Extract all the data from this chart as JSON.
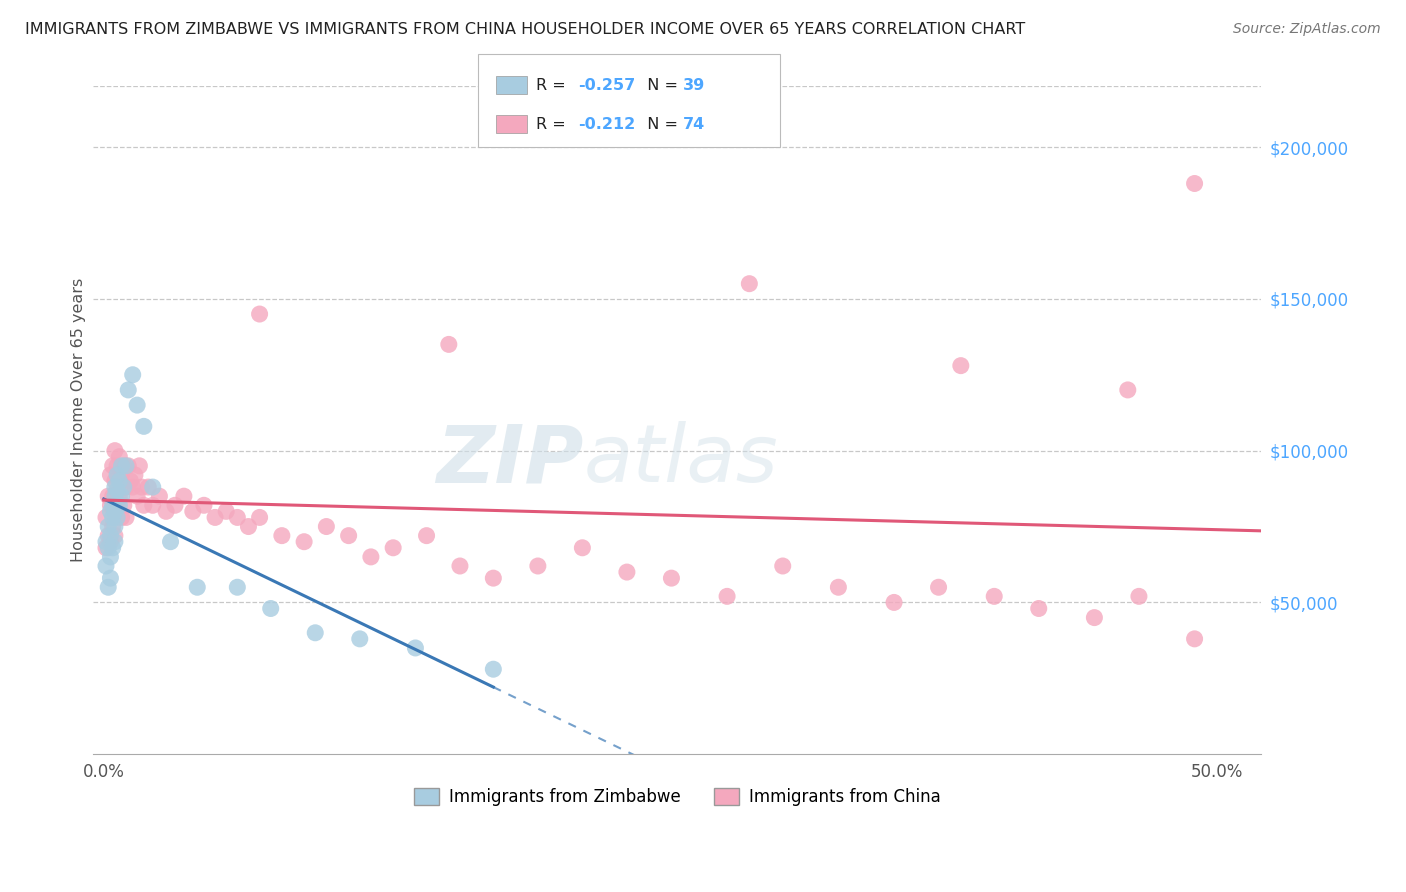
{
  "title": "IMMIGRANTS FROM ZIMBABWE VS IMMIGRANTS FROM CHINA HOUSEHOLDER INCOME OVER 65 YEARS CORRELATION CHART",
  "source": "Source: ZipAtlas.com",
  "ylabel": "Householder Income Over 65 years",
  "ytick_labels": [
    "$50,000",
    "$100,000",
    "$150,000",
    "$200,000"
  ],
  "ytick_vals": [
    50000,
    100000,
    150000,
    200000
  ],
  "ylim": [
    0,
    220000
  ],
  "xlim": [
    -0.005,
    0.52
  ],
  "xtick_vals": [
    0.0,
    0.5
  ],
  "xtick_labels": [
    "0.0%",
    "50.0%"
  ],
  "legend_R1": "R = -0.257",
  "legend_N1": "N = 39",
  "legend_R2": "R = -0.212",
  "legend_N2": "N = 74",
  "color_zimbabwe": "#a8cce0",
  "color_china": "#f4a8be",
  "trendline_color_zimbabwe": "#3a78b5",
  "trendline_color_china": "#e05878",
  "watermark_zip": "ZIP",
  "watermark_atlas": "atlas",
  "background_color": "#ffffff",
  "grid_color": "#c8c8c8",
  "title_color": "#222222",
  "ytick_color": "#4da6ff",
  "legend_text_color": "#222222",
  "legend_val_color": "#4da6ff",
  "source_color": "#777777",
  "zimbabwe_x": [
    0.001,
    0.001,
    0.002,
    0.002,
    0.002,
    0.003,
    0.003,
    0.003,
    0.003,
    0.004,
    0.004,
    0.004,
    0.005,
    0.005,
    0.005,
    0.005,
    0.005,
    0.006,
    0.006,
    0.006,
    0.007,
    0.007,
    0.008,
    0.008,
    0.009,
    0.01,
    0.011,
    0.013,
    0.015,
    0.018,
    0.022,
    0.03,
    0.042,
    0.06,
    0.075,
    0.095,
    0.115,
    0.14,
    0.175
  ],
  "zimbabwe_y": [
    70000,
    62000,
    75000,
    68000,
    55000,
    80000,
    72000,
    65000,
    58000,
    82000,
    78000,
    68000,
    88000,
    85000,
    80000,
    75000,
    70000,
    92000,
    87000,
    78000,
    90000,
    82000,
    95000,
    85000,
    88000,
    95000,
    120000,
    125000,
    115000,
    108000,
    88000,
    70000,
    55000,
    55000,
    48000,
    40000,
    38000,
    35000,
    28000
  ],
  "china_x": [
    0.001,
    0.001,
    0.002,
    0.002,
    0.003,
    0.003,
    0.003,
    0.004,
    0.004,
    0.004,
    0.005,
    0.005,
    0.005,
    0.005,
    0.006,
    0.006,
    0.007,
    0.007,
    0.008,
    0.008,
    0.009,
    0.009,
    0.01,
    0.01,
    0.011,
    0.012,
    0.013,
    0.014,
    0.015,
    0.016,
    0.017,
    0.018,
    0.02,
    0.022,
    0.025,
    0.028,
    0.032,
    0.036,
    0.04,
    0.045,
    0.05,
    0.055,
    0.06,
    0.065,
    0.07,
    0.08,
    0.09,
    0.1,
    0.11,
    0.12,
    0.13,
    0.145,
    0.16,
    0.175,
    0.195,
    0.215,
    0.235,
    0.255,
    0.28,
    0.305,
    0.33,
    0.355,
    0.375,
    0.4,
    0.42,
    0.445,
    0.465,
    0.49,
    0.155,
    0.07,
    0.29,
    0.385,
    0.46,
    0.49
  ],
  "china_y": [
    78000,
    68000,
    85000,
    72000,
    92000,
    82000,
    70000,
    95000,
    85000,
    75000,
    100000,
    90000,
    82000,
    72000,
    95000,
    82000,
    98000,
    85000,
    92000,
    78000,
    95000,
    82000,
    88000,
    78000,
    95000,
    90000,
    88000,
    92000,
    85000,
    95000,
    88000,
    82000,
    88000,
    82000,
    85000,
    80000,
    82000,
    85000,
    80000,
    82000,
    78000,
    80000,
    78000,
    75000,
    78000,
    72000,
    70000,
    75000,
    72000,
    65000,
    68000,
    72000,
    62000,
    58000,
    62000,
    68000,
    60000,
    58000,
    52000,
    62000,
    55000,
    50000,
    55000,
    52000,
    48000,
    45000,
    52000,
    38000,
    135000,
    145000,
    155000,
    128000,
    120000,
    188000
  ]
}
